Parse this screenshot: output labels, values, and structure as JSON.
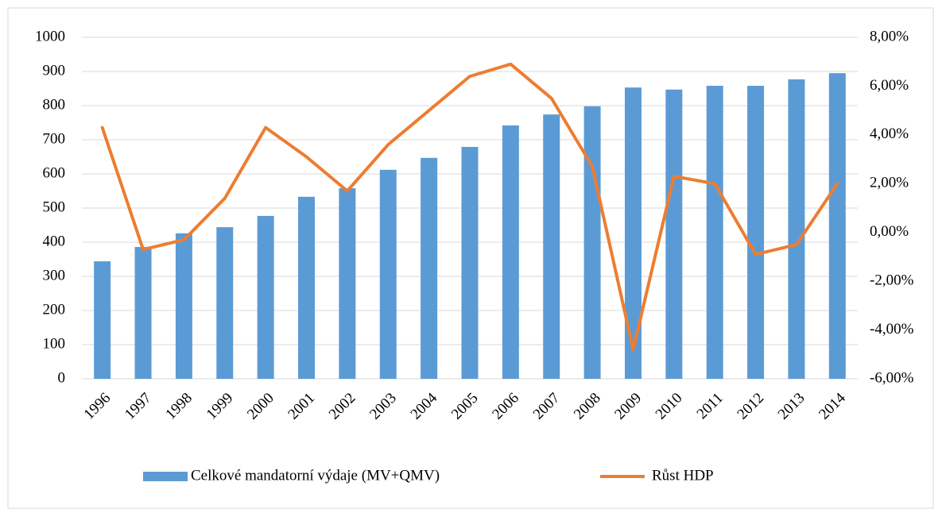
{
  "chart_data": {
    "type": "bar-line",
    "categories": [
      "1996",
      "1997",
      "1998",
      "1999",
      "2000",
      "2001",
      "2002",
      "2003",
      "2004",
      "2005",
      "2006",
      "2007",
      "2008",
      "2009",
      "2010",
      "2011",
      "2012",
      "2013",
      "2014"
    ],
    "series": [
      {
        "name": "Celkové mandatorní výdaje (MV+QMV)",
        "type": "bar",
        "color": "#5b9bd5",
        "values": [
          344,
          386,
          426,
          444,
          477,
          533,
          558,
          612,
          647,
          679,
          742,
          774,
          798,
          853,
          847,
          858,
          858,
          877,
          895
        ]
      },
      {
        "name": "Růst HDP",
        "type": "line",
        "axis": "y2",
        "color": "#ed7d31",
        "values": [
          4.3,
          -0.7,
          -0.3,
          1.4,
          4.3,
          3.1,
          1.7,
          3.6,
          5.0,
          6.4,
          6.9,
          5.5,
          2.7,
          -4.8,
          2.3,
          2.0,
          -0.9,
          -0.5,
          2.0
        ]
      }
    ],
    "ylim": [
      0,
      1000
    ],
    "yticks": [
      0,
      100,
      200,
      300,
      400,
      500,
      600,
      700,
      800,
      900,
      1000
    ],
    "y2lim": [
      -6,
      8
    ],
    "y2ticks": [
      {
        "value": -6,
        "label": "-6,00%"
      },
      {
        "value": -4,
        "label": "-4,00%"
      },
      {
        "value": -2,
        "label": "-2,00%"
      },
      {
        "value": 0,
        "label": "0,00%"
      },
      {
        "value": 2,
        "label": "2,00%"
      },
      {
        "value": 4,
        "label": "4,00%"
      },
      {
        "value": 6,
        "label": "6,00%"
      },
      {
        "value": 8,
        "label": "8,00%"
      }
    ],
    "grid": true,
    "legend": "bottom"
  }
}
